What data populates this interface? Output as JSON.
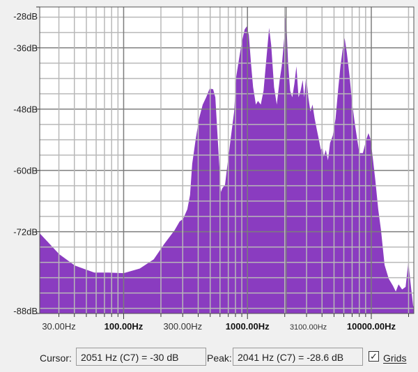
{
  "colors": {
    "fill": "#8a3cc0",
    "grid_minor": "#b8b8b8",
    "grid_major": "#7c7c7c",
    "background": "#ffffff"
  },
  "chart_data": {
    "type": "area",
    "xscale": "log",
    "xlim": [
      21,
      22050
    ],
    "ylim": [
      -88,
      -28
    ],
    "grid": true,
    "y_tick_labels": [
      "-28dB",
      "-36dB",
      "-48dB",
      "-60dB",
      "-72dB",
      "-88dB"
    ],
    "y_tick_values": [
      -28,
      -36,
      -48,
      -60,
      -72,
      -88
    ],
    "x_tick_labels": [
      {
        "text": "30.00Hz",
        "value": 30,
        "style": "normal"
      },
      {
        "text": "100.00Hz",
        "value": 100,
        "style": "major"
      },
      {
        "text": "300.00Hz",
        "value": 300,
        "style": "normal"
      },
      {
        "text": "1000.00Hz",
        "value": 1000,
        "style": "major"
      },
      {
        "text": "3100.00Hz",
        "value": 3100,
        "style": "minor"
      },
      {
        "text": "10000.00Hz",
        "value": 10000,
        "style": "major"
      }
    ],
    "cursor_hz": 2051,
    "x": [
      21,
      30.2,
      40.3,
      57.9,
      75.2,
      100,
      134.9,
      175,
      212.6,
      258,
      283,
      302,
      327,
      344,
      358,
      382,
      407,
      435,
      464,
      495,
      528,
      550,
      571,
      594,
      610,
      626,
      659,
      685,
      731,
      781,
      812,
      855,
      901,
      949,
      987,
      1026,
      1067,
      1110,
      1169,
      1216,
      1280,
      1349,
      1403,
      1496,
      1556,
      1640,
      1726,
      1820,
      1892,
      1991,
      2041,
      2128,
      2213,
      2301,
      2393,
      2486,
      2585,
      2687,
      2793,
      2870,
      2985,
      3103,
      3223,
      3352,
      3485,
      3624,
      3767,
      3917,
      4026,
      4131,
      4295,
      4467,
      4644,
      4888,
      5147,
      5420,
      5636,
      5861,
      6095,
      6339,
      6675,
      7029,
      7403,
      8009,
      8551,
      9126,
      9484,
      9863,
      10257,
      10800,
      11373,
      11976,
      12791,
      13834,
      14963,
      15764,
      16596,
      17742,
      18926,
      19922,
      20719,
      21820,
      22050
    ],
    "y": [
      -72.3,
      -76.4,
      -78.6,
      -80.0,
      -80.0,
      -80.1,
      -79.2,
      -77.4,
      -74.4,
      -71.7,
      -70.0,
      -69.5,
      -67.6,
      -64.8,
      -58.7,
      -53.9,
      -49.8,
      -47.1,
      -45.7,
      -44.0,
      -44.1,
      -45.7,
      -52.6,
      -59.4,
      -64.2,
      -63.5,
      -62.8,
      -59.4,
      -53.9,
      -48.5,
      -41.6,
      -38.2,
      -34.8,
      -32.4,
      -31.8,
      -33.5,
      -38.9,
      -43.7,
      -47.1,
      -46.4,
      -47.1,
      -44.4,
      -39.6,
      -32.1,
      -35.5,
      -43.7,
      -47.1,
      -42.3,
      -39.6,
      -33.5,
      -28.6,
      -38.9,
      -44.4,
      -45.7,
      -43.0,
      -39.6,
      -45.7,
      -44.4,
      -42.3,
      -45.7,
      -41.4,
      -45.7,
      -48.5,
      -47.1,
      -49.8,
      -51.9,
      -53.9,
      -56.0,
      -55.3,
      -57.3,
      -56.0,
      -58.0,
      -54.6,
      -53.2,
      -49.8,
      -43.7,
      -39.6,
      -36.5,
      -34.1,
      -36.9,
      -41.6,
      -47.1,
      -51.2,
      -56.6,
      -56.6,
      -53.9,
      -52.7,
      -53.9,
      -57.3,
      -62.1,
      -67.6,
      -71.7,
      -78.5,
      -81.2,
      -82.6,
      -83.7,
      -82.3,
      -83.3,
      -82.8,
      -77.8,
      -81.9,
      -86.7,
      -86.0
    ]
  },
  "status": {
    "cursor_label": "Cursor:",
    "cursor_value": "2051 Hz (C7) = -30 dB",
    "peak_label": "Peak:",
    "peak_value": "2041 Hz (C7) = -28.6 dB",
    "grids_label": "Grids",
    "grids_checked": true
  }
}
